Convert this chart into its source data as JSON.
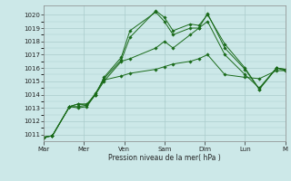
{
  "bg_color": "#cce8e8",
  "grid_color": "#aacccc",
  "line_color": "#1a6b1a",
  "marker_color": "#1a6b1a",
  "xlabel": "Pression niveau de la mer( hPa )",
  "ylim": [
    1010.5,
    1020.7
  ],
  "yticks": [
    1011,
    1012,
    1013,
    1014,
    1015,
    1016,
    1017,
    1018,
    1019,
    1020
  ],
  "day_labels": [
    "Mar",
    "Mer",
    "Ven",
    "Sam",
    "Dim",
    "Lun",
    "M"
  ],
  "xlim": [
    0,
    14
  ],
  "day_x": [
    0,
    2.33,
    4.67,
    7.0,
    9.33,
    11.67,
    14.0
  ],
  "series": [
    {
      "x": [
        0,
        0.5,
        1.5,
        2.0,
        2.5,
        3.0,
        3.5,
        4.5,
        5.0,
        6.5,
        7.0,
        7.5,
        8.5,
        9.0,
        9.5,
        10.5,
        11.67,
        12.5,
        13.5,
        14.0
      ],
      "y": [
        1010.8,
        1010.9,
        1013.1,
        1013.3,
        1013.2,
        1014.0,
        1015.2,
        1016.6,
        1018.3,
        1020.3,
        1019.8,
        1018.8,
        1019.3,
        1019.2,
        1020.0,
        1017.8,
        1016.0,
        1014.4,
        1016.0,
        1015.9
      ]
    },
    {
      "x": [
        0,
        0.5,
        1.5,
        2.0,
        2.5,
        3.0,
        3.5,
        4.5,
        5.0,
        6.5,
        7.0,
        7.5,
        8.5,
        9.0,
        9.5,
        10.5,
        11.67,
        12.5,
        13.5,
        14.0
      ],
      "y": [
        1010.8,
        1010.9,
        1013.1,
        1013.3,
        1013.3,
        1014.0,
        1015.3,
        1016.8,
        1018.8,
        1020.2,
        1019.5,
        1018.5,
        1019.0,
        1019.0,
        1020.1,
        1017.5,
        1015.9,
        1014.4,
        1016.0,
        1015.9
      ]
    },
    {
      "x": [
        0,
        0.5,
        1.5,
        2.0,
        2.5,
        3.0,
        3.5,
        4.5,
        5.0,
        6.5,
        7.0,
        7.5,
        8.5,
        9.0,
        9.5,
        10.5,
        11.67,
        12.5,
        13.5,
        14.0
      ],
      "y": [
        1010.8,
        1010.9,
        1013.1,
        1013.0,
        1013.1,
        1014.0,
        1015.0,
        1016.5,
        1016.7,
        1017.5,
        1018.0,
        1017.5,
        1018.5,
        1019.0,
        1019.5,
        1017.0,
        1015.5,
        1014.5,
        1016.0,
        1015.8
      ]
    },
    {
      "x": [
        0,
        0.5,
        1.5,
        2.0,
        2.5,
        3.0,
        3.5,
        4.5,
        5.0,
        6.5,
        7.0,
        7.5,
        8.5,
        9.0,
        9.5,
        10.5,
        11.67,
        12.5,
        13.5,
        14.0
      ],
      "y": [
        1010.8,
        1010.9,
        1013.1,
        1013.1,
        1013.2,
        1014.1,
        1015.1,
        1015.4,
        1015.6,
        1015.9,
        1016.1,
        1016.3,
        1016.5,
        1016.7,
        1017.0,
        1015.5,
        1015.3,
        1015.2,
        1015.8,
        1015.8
      ]
    }
  ]
}
